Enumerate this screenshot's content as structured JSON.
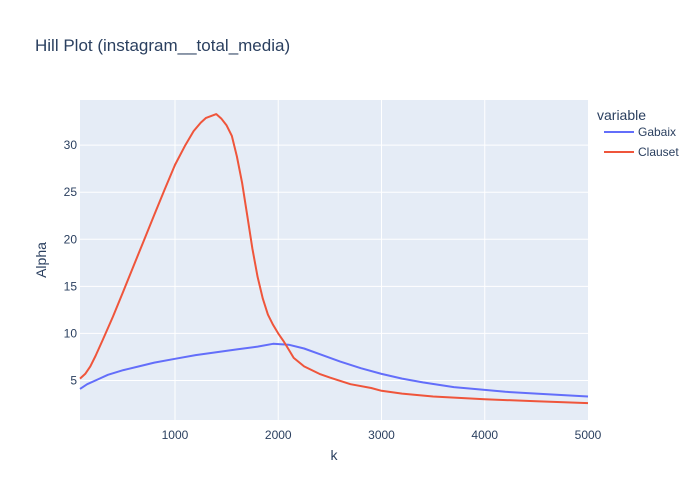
{
  "chart_data": {
    "type": "line",
    "title": "Hill Plot (instagram__total_media)",
    "xlabel": "k",
    "ylabel": "Alpha",
    "xlim": [
      80,
      5000
    ],
    "ylim": [
      0.8,
      34.8
    ],
    "x_ticks": [
      1000,
      2000,
      3000,
      4000,
      5000
    ],
    "y_ticks": [
      5,
      10,
      15,
      20,
      25,
      30
    ],
    "grid": true,
    "legend": {
      "title": "variable",
      "placement": "top-right"
    },
    "series": [
      {
        "name": "Gabaix",
        "color": "#636efa",
        "points": [
          [
            80,
            4.1
          ],
          [
            150,
            4.6
          ],
          [
            250,
            5.1
          ],
          [
            350,
            5.6
          ],
          [
            500,
            6.1
          ],
          [
            650,
            6.5
          ],
          [
            800,
            6.9
          ],
          [
            1000,
            7.3
          ],
          [
            1200,
            7.7
          ],
          [
            1400,
            8.0
          ],
          [
            1600,
            8.3
          ],
          [
            1800,
            8.6
          ],
          [
            1950,
            8.9
          ],
          [
            2100,
            8.8
          ],
          [
            2250,
            8.4
          ],
          [
            2400,
            7.8
          ],
          [
            2600,
            7.0
          ],
          [
            2800,
            6.3
          ],
          [
            3000,
            5.7
          ],
          [
            3200,
            5.2
          ],
          [
            3400,
            4.8
          ],
          [
            3700,
            4.3
          ],
          [
            4000,
            4.0
          ],
          [
            4200,
            3.8
          ],
          [
            4500,
            3.6
          ],
          [
            5000,
            3.3
          ]
        ]
      },
      {
        "name": "Clauset",
        "color": "#ef553b",
        "points": [
          [
            80,
            5.2
          ],
          [
            130,
            5.7
          ],
          [
            180,
            6.5
          ],
          [
            230,
            7.6
          ],
          [
            300,
            9.3
          ],
          [
            400,
            11.8
          ],
          [
            500,
            14.5
          ],
          [
            600,
            17.2
          ],
          [
            700,
            19.9
          ],
          [
            800,
            22.6
          ],
          [
            900,
            25.3
          ],
          [
            1000,
            27.9
          ],
          [
            1100,
            30.0
          ],
          [
            1180,
            31.5
          ],
          [
            1250,
            32.4
          ],
          [
            1300,
            32.9
          ],
          [
            1400,
            33.3
          ],
          [
            1450,
            32.8
          ],
          [
            1500,
            32.1
          ],
          [
            1550,
            31.0
          ],
          [
            1600,
            28.8
          ],
          [
            1650,
            26.0
          ],
          [
            1700,
            22.5
          ],
          [
            1750,
            19.0
          ],
          [
            1800,
            16.0
          ],
          [
            1850,
            13.7
          ],
          [
            1900,
            12.0
          ],
          [
            1950,
            10.9
          ],
          [
            2000,
            10.0
          ],
          [
            2050,
            9.2
          ],
          [
            2100,
            8.3
          ],
          [
            2150,
            7.4
          ],
          [
            2250,
            6.5
          ],
          [
            2400,
            5.7
          ],
          [
            2500,
            5.3
          ],
          [
            2700,
            4.6
          ],
          [
            2900,
            4.2
          ],
          [
            3000,
            3.9
          ],
          [
            3200,
            3.6
          ],
          [
            3500,
            3.3
          ],
          [
            4000,
            3.0
          ],
          [
            4500,
            2.8
          ],
          [
            5000,
            2.6
          ]
        ]
      }
    ]
  }
}
